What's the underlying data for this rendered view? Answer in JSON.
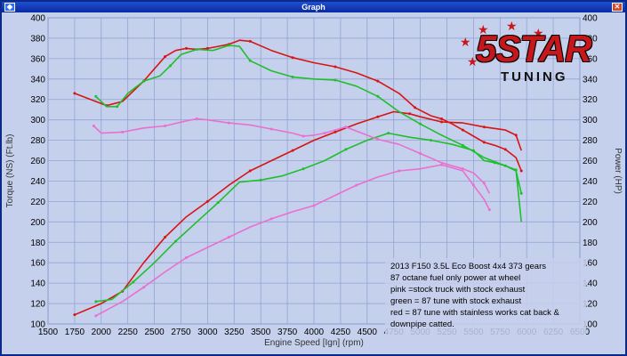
{
  "window": {
    "title": "Graph"
  },
  "logo": {
    "five": "5",
    "star": "STAR",
    "tuning": "TUNING"
  },
  "notes": [
    "2013 F150 3.5L Eco Boost 4x4 373 gears",
    "87 octane fuel only power at wheel",
    "pink =stock truck with stock exhaust",
    "green = 87 tune with stock exhaust",
    "red = 87 tune with stainless works cat back &",
    "downpipe catted."
  ],
  "chart_data": {
    "type": "line",
    "xlabel": "Engine Speed [Ign] (rpm)",
    "ylabel_left": "Torque (NS) (Ft.lb)",
    "ylabel_right": "Power (HP)",
    "xlim": [
      1500,
      6500
    ],
    "ylim": [
      100,
      400
    ],
    "x_ticks": [
      1500,
      1750,
      2000,
      2250,
      2500,
      2750,
      3000,
      3250,
      3500,
      3750,
      4000,
      4250,
      4500,
      4750,
      5000,
      5250,
      5500,
      5750,
      6000,
      6250,
      6500
    ],
    "y_ticks": [
      100,
      120,
      140,
      160,
      180,
      200,
      220,
      240,
      260,
      280,
      300,
      320,
      340,
      360,
      380,
      400
    ],
    "grid": true,
    "colors": {
      "red": "#d81414",
      "green": "#1fbf2c",
      "pink": "#ea6fd0"
    },
    "series": [
      {
        "color": "red",
        "kind": "torque",
        "points": [
          [
            1750,
            326
          ],
          [
            1900,
            320
          ],
          [
            2050,
            314
          ],
          [
            2200,
            318
          ],
          [
            2400,
            338
          ],
          [
            2500,
            350
          ],
          [
            2600,
            362
          ],
          [
            2700,
            368
          ],
          [
            2800,
            370
          ],
          [
            2900,
            369
          ],
          [
            3000,
            370
          ],
          [
            3100,
            372
          ],
          [
            3200,
            374
          ],
          [
            3300,
            378
          ],
          [
            3400,
            377
          ],
          [
            3600,
            368
          ],
          [
            3800,
            361
          ],
          [
            4000,
            356
          ],
          [
            4200,
            352
          ],
          [
            4400,
            346
          ],
          [
            4600,
            338
          ],
          [
            4800,
            326
          ],
          [
            4950,
            312
          ],
          [
            5100,
            304
          ],
          [
            5200,
            301
          ],
          [
            5300,
            296
          ],
          [
            5400,
            290
          ],
          [
            5500,
            284
          ],
          [
            5600,
            278
          ],
          [
            5700,
            275
          ],
          [
            5800,
            271
          ],
          [
            5900,
            263
          ],
          [
            5950,
            250
          ]
        ]
      },
      {
        "color": "red",
        "kind": "power",
        "points": [
          [
            1750,
            109
          ],
          [
            2000,
            120
          ],
          [
            2200,
            132
          ],
          [
            2400,
            160
          ],
          [
            2600,
            185
          ],
          [
            2800,
            205
          ],
          [
            3000,
            220
          ],
          [
            3200,
            236
          ],
          [
            3400,
            250
          ],
          [
            3600,
            260
          ],
          [
            3800,
            270
          ],
          [
            4000,
            280
          ],
          [
            4200,
            288
          ],
          [
            4400,
            296
          ],
          [
            4600,
            303
          ],
          [
            4750,
            308
          ],
          [
            4900,
            306
          ],
          [
            5000,
            303
          ],
          [
            5200,
            298
          ],
          [
            5400,
            297
          ],
          [
            5600,
            293
          ],
          [
            5800,
            290
          ],
          [
            5900,
            285
          ],
          [
            5950,
            270
          ]
        ]
      },
      {
        "color": "green",
        "kind": "torque",
        "points": [
          [
            1950,
            323
          ],
          [
            2050,
            313
          ],
          [
            2150,
            313
          ],
          [
            2250,
            326
          ],
          [
            2400,
            338
          ],
          [
            2550,
            343
          ],
          [
            2650,
            353
          ],
          [
            2750,
            364
          ],
          [
            2900,
            369
          ],
          [
            3050,
            368
          ],
          [
            3200,
            373
          ],
          [
            3300,
            372
          ],
          [
            3400,
            358
          ],
          [
            3600,
            348
          ],
          [
            3800,
            342
          ],
          [
            4000,
            340
          ],
          [
            4200,
            339
          ],
          [
            4400,
            333
          ],
          [
            4600,
            323
          ],
          [
            4800,
            308
          ],
          [
            5000,
            296
          ],
          [
            5200,
            285
          ],
          [
            5400,
            275
          ],
          [
            5600,
            263
          ],
          [
            5800,
            255
          ],
          [
            5900,
            250
          ],
          [
            5950,
            228
          ]
        ]
      },
      {
        "color": "green",
        "kind": "power",
        "points": [
          [
            1950,
            122
          ],
          [
            2100,
            124
          ],
          [
            2300,
            141
          ],
          [
            2500,
            160
          ],
          [
            2700,
            181
          ],
          [
            2900,
            200
          ],
          [
            3100,
            219
          ],
          [
            3300,
            239
          ],
          [
            3500,
            241
          ],
          [
            3700,
            245
          ],
          [
            3900,
            252
          ],
          [
            4100,
            260
          ],
          [
            4300,
            271
          ],
          [
            4500,
            280
          ],
          [
            4700,
            287
          ],
          [
            4900,
            283
          ],
          [
            5100,
            280
          ],
          [
            5300,
            276
          ],
          [
            5500,
            270
          ],
          [
            5600,
            260
          ],
          [
            5700,
            258
          ],
          [
            5800,
            255
          ],
          [
            5900,
            251
          ],
          [
            5950,
            200
          ]
        ]
      },
      {
        "color": "pink",
        "kind": "torque",
        "points": [
          [
            1930,
            294
          ],
          [
            2000,
            287
          ],
          [
            2200,
            288
          ],
          [
            2400,
            292
          ],
          [
            2600,
            294
          ],
          [
            2800,
            299
          ],
          [
            2900,
            301
          ],
          [
            3000,
            300
          ],
          [
            3200,
            297
          ],
          [
            3400,
            295
          ],
          [
            3600,
            291
          ],
          [
            3800,
            287
          ],
          [
            3900,
            284
          ],
          [
            4000,
            285
          ],
          [
            4100,
            287
          ],
          [
            4200,
            290
          ],
          [
            4300,
            293
          ],
          [
            4400,
            289
          ],
          [
            4600,
            281
          ],
          [
            4800,
            276
          ],
          [
            5000,
            267
          ],
          [
            5200,
            258
          ],
          [
            5400,
            252
          ],
          [
            5500,
            248
          ],
          [
            5600,
            238
          ],
          [
            5650,
            228
          ]
        ]
      },
      {
        "color": "pink",
        "kind": "power",
        "points": [
          [
            1950,
            108
          ],
          [
            2200,
            122
          ],
          [
            2400,
            136
          ],
          [
            2600,
            151
          ],
          [
            2800,
            165
          ],
          [
            3000,
            175
          ],
          [
            3200,
            185
          ],
          [
            3400,
            195
          ],
          [
            3600,
            203
          ],
          [
            3800,
            210
          ],
          [
            4000,
            216
          ],
          [
            4200,
            226
          ],
          [
            4400,
            236
          ],
          [
            4600,
            244
          ],
          [
            4800,
            250
          ],
          [
            5000,
            252
          ],
          [
            5200,
            256
          ],
          [
            5400,
            250
          ],
          [
            5500,
            236
          ],
          [
            5600,
            222
          ],
          [
            5650,
            212
          ]
        ]
      }
    ]
  }
}
